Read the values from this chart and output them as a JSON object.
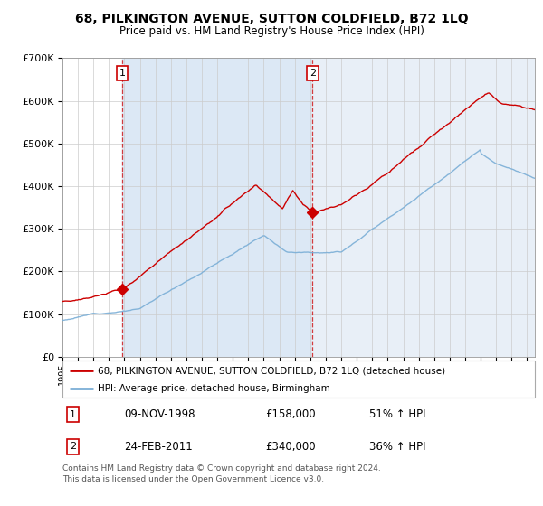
{
  "title": "68, PILKINGTON AVENUE, SUTTON COLDFIELD, B72 1LQ",
  "subtitle": "Price paid vs. HM Land Registry's House Price Index (HPI)",
  "legend_line1": "68, PILKINGTON AVENUE, SUTTON COLDFIELD, B72 1LQ (detached house)",
  "legend_line2": "HPI: Average price, detached house, Birmingham",
  "sale1_label": "1",
  "sale2_label": "2",
  "sale1_date": "09-NOV-1998",
  "sale1_price": "£158,000",
  "sale1_hpi": "51% ↑ HPI",
  "sale2_date": "24-FEB-2011",
  "sale2_price": "£340,000",
  "sale2_hpi": "36% ↑ HPI",
  "footer": "Contains HM Land Registry data © Crown copyright and database right 2024.\nThis data is licensed under the Open Government Licence v3.0.",
  "red_color": "#cc0000",
  "blue_color": "#7aaed6",
  "bg_shade_color": "#dce8f5",
  "ylim": [
    0,
    700000
  ],
  "sale1_x": 1998.86,
  "sale2_x": 2011.14,
  "xmin": 1995.0,
  "xmax": 2025.5
}
